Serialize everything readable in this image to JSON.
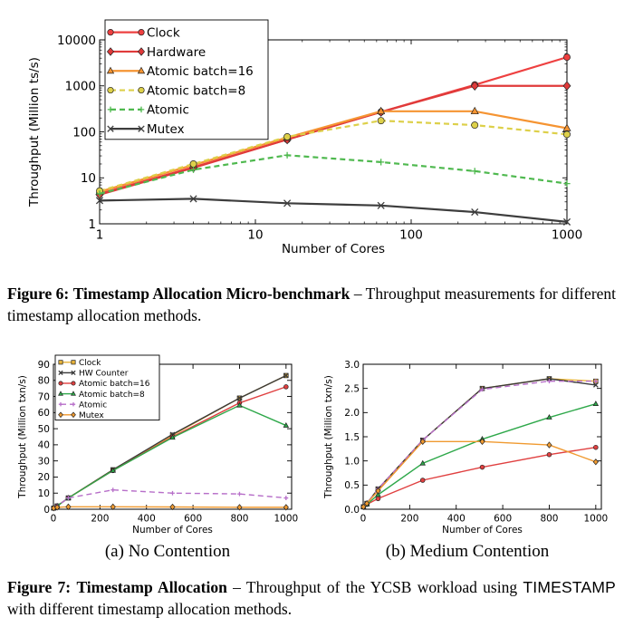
{
  "fig6": {
    "caption_label": "Figure 6:",
    "caption_title": "Timestamp Allocation Micro-benchmark",
    "caption_text": "– Throughput measurements for different timestamp allocation methods."
  },
  "fig7": {
    "caption_label": "Figure 7:",
    "caption_title": "Timestamp Allocation",
    "caption_text_a": "– Throughput of the YCSB workload using",
    "caption_code": "TIMESTAMP",
    "caption_text_b": "with different timestamp allocation methods.",
    "sub_a": "(a) No Contention",
    "sub_b": "(b) Medium Contention"
  },
  "chart_data": [
    {
      "id": "fig6",
      "type": "line",
      "xlabel": "Number of Cores",
      "ylabel": "Throughput (Million ts/s)",
      "xscale": "log",
      "yscale": "log",
      "xlim": [
        1,
        1000
      ],
      "ylim": [
        1,
        10000
      ],
      "xticks": [
        1,
        10,
        100,
        1000
      ],
      "xtick_labels": [
        "1",
        "10",
        "100",
        "1000"
      ],
      "yticks": [
        1,
        10,
        100,
        1000,
        10000
      ],
      "ytick_labels": [
        "1",
        "10",
        "100",
        "1000",
        "10000"
      ],
      "legend": "top-left",
      "x": [
        1,
        4,
        16,
        64,
        256,
        1000
      ],
      "series": [
        {
          "name": "Clock",
          "color": "#ee4040",
          "marker": "circle",
          "dash": "",
          "values": [
            4.5,
            17,
            68,
            270,
            1050,
            4200
          ]
        },
        {
          "name": "Hardware",
          "color": "#e03a3a",
          "marker": "diamond",
          "dash": "",
          "values": [
            4.3,
            16.5,
            68,
            270,
            1000,
            1000
          ]
        },
        {
          "name": "Atomic batch=16",
          "color": "#f59432",
          "marker": "triangle",
          "dash": "",
          "values": [
            5,
            19,
            75,
            280,
            280,
            120
          ]
        },
        {
          "name": "Atomic batch=8",
          "color": "#ddd04a",
          "marker": "circle",
          "dash": "6,4",
          "values": [
            5.2,
            20,
            78,
            175,
            140,
            88
          ]
        },
        {
          "name": "Atomic",
          "color": "#4fb94f",
          "marker": "plus",
          "dash": "6,4",
          "values": [
            4.5,
            15,
            31,
            22,
            14,
            7.5
          ]
        },
        {
          "name": "Mutex",
          "color": "#3d3d3d",
          "marker": "x",
          "dash": "",
          "values": [
            3.2,
            3.5,
            2.8,
            2.5,
            1.8,
            1.1
          ]
        }
      ]
    },
    {
      "id": "fig7a",
      "type": "line",
      "xlabel": "Number of Cores",
      "ylabel": "Throughput (Million txn/s)",
      "xlim": [
        0,
        1024
      ],
      "ylim": [
        0,
        90
      ],
      "xticks": [
        0,
        200,
        400,
        600,
        800,
        1000
      ],
      "xtick_labels": [
        "0",
        "200",
        "400",
        "600",
        "800",
        "1000"
      ],
      "yticks": [
        0,
        10,
        20,
        30,
        40,
        50,
        60,
        70,
        80,
        90
      ],
      "ytick_labels": [
        "0",
        "10",
        "20",
        "30",
        "40",
        "50",
        "60",
        "70",
        "80",
        "90"
      ],
      "legend": "top-left",
      "x": [
        1,
        16,
        64,
        256,
        512,
        800,
        1000
      ],
      "series": [
        {
          "name": "Clock",
          "color": "#e8b339",
          "marker": "square",
          "dash": "",
          "values": [
            0.7,
            2,
            7,
            24.5,
            46,
            69,
            83
          ]
        },
        {
          "name": "HW Counter",
          "color": "#3a3a3a",
          "marker": "x",
          "dash": "",
          "values": [
            0.7,
            2,
            7,
            24.5,
            46.5,
            69,
            83
          ]
        },
        {
          "name": "Atomic batch=16",
          "color": "#e04040",
          "marker": "circle",
          "dash": "",
          "values": [
            0.7,
            2,
            7,
            24,
            45,
            66,
            76
          ]
        },
        {
          "name": "Atomic batch=8",
          "color": "#2ea84a",
          "marker": "triangle",
          "dash": "",
          "values": [
            0.7,
            2,
            7,
            24,
            44.5,
            64.5,
            52
          ]
        },
        {
          "name": "Atomic",
          "color": "#b76fc9",
          "marker": "plus",
          "dash": "6,4",
          "values": [
            0.7,
            2,
            7,
            12,
            10,
            9.5,
            7
          ]
        },
        {
          "name": "Mutex",
          "color": "#f09a30",
          "marker": "diamond",
          "dash": "",
          "values": [
            0.7,
            1.2,
            1.5,
            1.5,
            1.4,
            1.2,
            1.2
          ]
        }
      ]
    },
    {
      "id": "fig7b",
      "type": "line",
      "xlabel": "Number of Cores",
      "ylabel": "Throughput (Million txn/s)",
      "xlim": [
        0,
        1024
      ],
      "ylim": [
        0,
        3.0
      ],
      "xticks": [
        0,
        200,
        400,
        600,
        800,
        1000
      ],
      "xtick_labels": [
        "0",
        "200",
        "400",
        "600",
        "800",
        "1000"
      ],
      "yticks": [
        0,
        0.5,
        1.0,
        1.5,
        2.0,
        2.5,
        3.0
      ],
      "ytick_labels": [
        "0.0",
        "0.5",
        "1.0",
        "1.5",
        "2.0",
        "2.5",
        "3.0"
      ],
      "x": [
        1,
        16,
        64,
        256,
        512,
        800,
        1000
      ],
      "series": [
        {
          "name": "Clock",
          "color": "#e8b339",
          "marker": "square",
          "dash": "",
          "values": [
            0.05,
            0.12,
            0.42,
            1.43,
            2.5,
            2.7,
            2.65
          ]
        },
        {
          "name": "HW Counter",
          "color": "#3a3a3a",
          "marker": "x",
          "dash": "",
          "values": [
            0.05,
            0.12,
            0.42,
            1.43,
            2.5,
            2.7,
            2.57
          ]
        },
        {
          "name": "Atomic batch=16",
          "color": "#e04040",
          "marker": "circle",
          "dash": "",
          "values": [
            0.05,
            0.1,
            0.22,
            0.6,
            0.87,
            1.13,
            1.28
          ]
        },
        {
          "name": "Atomic batch=8",
          "color": "#2ea84a",
          "marker": "triangle",
          "dash": "",
          "values": [
            0.05,
            0.1,
            0.3,
            0.95,
            1.45,
            1.9,
            2.18
          ]
        },
        {
          "name": "Atomic",
          "color": "#b76fc9",
          "marker": "plus",
          "dash": "6,4",
          "values": [
            0.05,
            0.12,
            0.42,
            1.43,
            2.48,
            2.65,
            2.65
          ]
        },
        {
          "name": "Mutex",
          "color": "#f09a30",
          "marker": "diamond",
          "dash": "",
          "values": [
            0.05,
            0.12,
            0.38,
            1.4,
            1.4,
            1.33,
            0.98
          ]
        }
      ]
    }
  ]
}
